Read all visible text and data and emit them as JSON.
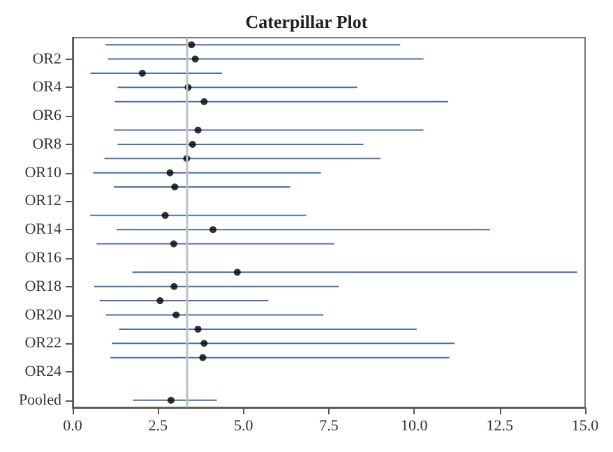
{
  "chart_data": {
    "type": "scatter",
    "title": "Caterpillar Plot",
    "orientation": "horizontal",
    "categories": [
      null,
      "OR2",
      null,
      "OR4",
      null,
      "OR6",
      null,
      "OR8",
      null,
      "OR10",
      null,
      "OR12",
      null,
      "OR14",
      null,
      "OR16",
      null,
      "OR18",
      null,
      "OR20",
      null,
      "OR22",
      null,
      "OR24",
      null,
      "Pooled"
    ],
    "series": [
      {
        "color": "#000000",
        "values": [
          3.48,
          3.59,
          2.04,
          3.38,
          3.85,
          null,
          3.67,
          3.51,
          3.34,
          2.85,
          2.99,
          null,
          2.71,
          4.11,
          2.96,
          null,
          4.82,
          2.97,
          2.56,
          3.03,
          3.67,
          3.85,
          3.81,
          null,
          null,
          2.88
        ],
        "errors": [
          [
            0.96,
            9.59
          ],
          [
            1.03,
            10.27
          ],
          [
            0.52,
            4.37
          ],
          [
            1.32,
            8.33
          ],
          [
            1.23,
            10.99
          ],
          null,
          [
            1.21,
            10.27
          ],
          [
            1.32,
            8.51
          ],
          [
            0.93,
            9.01
          ],
          [
            0.6,
            7.27
          ],
          [
            1.21,
            6.37
          ],
          null,
          [
            0.51,
            6.84
          ],
          [
            1.29,
            12.22
          ],
          [
            0.7,
            7.67
          ],
          null,
          [
            1.75,
            14.77
          ],
          [
            0.63,
            7.79
          ],
          [
            0.79,
            5.73
          ],
          [
            0.97,
            7.34
          ],
          [
            1.36,
            10.07
          ],
          [
            1.15,
            11.18
          ],
          [
            1.11,
            11.03
          ],
          null,
          null,
          [
            1.77,
            4.22
          ]
        ]
      }
    ],
    "xlim": [
      0,
      15
    ],
    "xticks": [
      {
        "value": 0,
        "label": "0.0"
      },
      {
        "value": 2.5,
        "label": "2.5"
      },
      {
        "value": 5,
        "label": "5.0"
      },
      {
        "value": 7.5,
        "label": "7.5"
      },
      {
        "value": 10,
        "label": "10.0"
      },
      {
        "value": 12.5,
        "label": "12.5"
      },
      {
        "value": 15,
        "label": "15.0"
      }
    ],
    "ref_lines": [
      {
        "axis": "x",
        "value": 3.34,
        "color": "#c0c0c0"
      }
    ],
    "marker": "circle",
    "grid": false
  }
}
